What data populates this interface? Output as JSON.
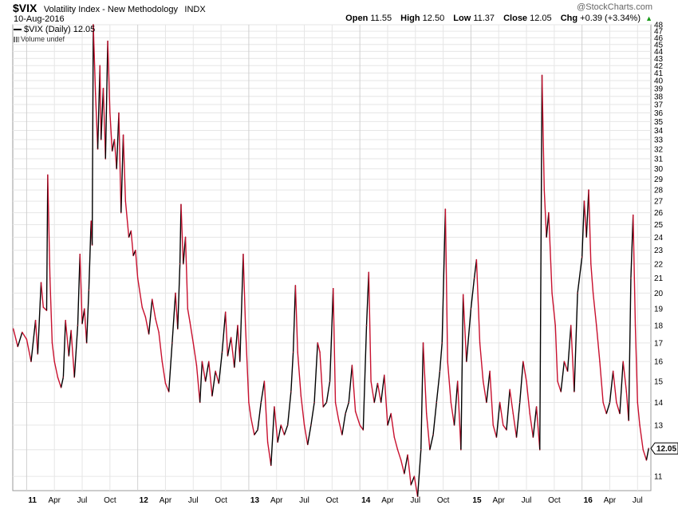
{
  "header": {
    "symbol": "$VIX",
    "name": "Volatility Index - New Methodology",
    "exchange": "INDX",
    "date": "10-Aug-2016",
    "watermark": "@StockCharts.com",
    "open_label": "Open",
    "open": "11.55",
    "high_label": "High",
    "high": "12.50",
    "low_label": "Low",
    "low": "11.37",
    "close_label": "Close",
    "close": "12.05",
    "chg_label": "Chg",
    "chg": "+0.39 (+3.34%)"
  },
  "legend": {
    "series": "$VIX (Daily) 12.05",
    "volume": "Volume undef"
  },
  "colors": {
    "up": "#000000",
    "down": "#c8102e",
    "grid": "#e6e6e6"
  },
  "chart_data": {
    "type": "line",
    "xlabel": "",
    "ylabel": "",
    "ylim": [
      10.5,
      48
    ],
    "y_scale": "log",
    "yticks": [
      11,
      12,
      13,
      14,
      15,
      16,
      17,
      18,
      19,
      20,
      21,
      22,
      23,
      24,
      25,
      26,
      27,
      28,
      29,
      30,
      31,
      32,
      33,
      34,
      35,
      36,
      37,
      38,
      39,
      40,
      41,
      42,
      43,
      44,
      45,
      46,
      47,
      48
    ],
    "xticks": [
      {
        "label": "11",
        "t": 2011.0,
        "year": true
      },
      {
        "label": "Apr",
        "t": 2011.25
      },
      {
        "label": "Jul",
        "t": 2011.5
      },
      {
        "label": "Oct",
        "t": 2011.75
      },
      {
        "label": "12",
        "t": 2012.0,
        "year": true
      },
      {
        "label": "Apr",
        "t": 2012.25
      },
      {
        "label": "Jul",
        "t": 2012.5
      },
      {
        "label": "Oct",
        "t": 2012.75
      },
      {
        "label": "13",
        "t": 2013.0,
        "year": true
      },
      {
        "label": "Apr",
        "t": 2013.25
      },
      {
        "label": "Jul",
        "t": 2013.5
      },
      {
        "label": "Oct",
        "t": 2013.75
      },
      {
        "label": "14",
        "t": 2014.0,
        "year": true
      },
      {
        "label": "Apr",
        "t": 2014.25
      },
      {
        "label": "Jul",
        "t": 2014.5
      },
      {
        "label": "Oct",
        "t": 2014.75
      },
      {
        "label": "15",
        "t": 2015.0,
        "year": true
      },
      {
        "label": "Apr",
        "t": 2015.25
      },
      {
        "label": "Jul",
        "t": 2015.5
      },
      {
        "label": "Oct",
        "t": 2015.75
      },
      {
        "label": "16",
        "t": 2016.0,
        "year": true
      },
      {
        "label": "Apr",
        "t": 2016.25
      },
      {
        "label": "Jul",
        "t": 2016.5
      }
    ],
    "last_value_label": "12.05",
    "series": [
      {
        "name": "$VIX (Daily)",
        "points": [
          [
            2010.88,
            17.8
          ],
          [
            2010.92,
            16.8
          ],
          [
            2010.96,
            17.6
          ],
          [
            2011.0,
            17.2
          ],
          [
            2011.04,
            16.0
          ],
          [
            2011.08,
            18.3
          ],
          [
            2011.1,
            16.4
          ],
          [
            2011.13,
            20.7
          ],
          [
            2011.15,
            19.1
          ],
          [
            2011.18,
            18.9
          ],
          [
            2011.19,
            29.4
          ],
          [
            2011.21,
            21.0
          ],
          [
            2011.23,
            17.0
          ],
          [
            2011.25,
            16.0
          ],
          [
            2011.28,
            15.2
          ],
          [
            2011.31,
            14.7
          ],
          [
            2011.33,
            15.2
          ],
          [
            2011.35,
            18.3
          ],
          [
            2011.38,
            16.3
          ],
          [
            2011.4,
            17.7
          ],
          [
            2011.43,
            15.2
          ],
          [
            2011.46,
            18.0
          ],
          [
            2011.48,
            22.7
          ],
          [
            2011.5,
            18.1
          ],
          [
            2011.52,
            19.0
          ],
          [
            2011.54,
            17.0
          ],
          [
            2011.56,
            20.2
          ],
          [
            2011.58,
            25.3
          ],
          [
            2011.59,
            23.4
          ],
          [
            2011.6,
            48.0
          ],
          [
            2011.62,
            38.3
          ],
          [
            2011.64,
            32.0
          ],
          [
            2011.66,
            42.0
          ],
          [
            2011.67,
            33.0
          ],
          [
            2011.69,
            39.0
          ],
          [
            2011.71,
            31.0
          ],
          [
            2011.73,
            45.5
          ],
          [
            2011.75,
            36.0
          ],
          [
            2011.77,
            31.8
          ],
          [
            2011.79,
            33.0
          ],
          [
            2011.81,
            30.0
          ],
          [
            2011.83,
            36.0
          ],
          [
            2011.85,
            26.0
          ],
          [
            2011.87,
            33.5
          ],
          [
            2011.89,
            27.0
          ],
          [
            2011.92,
            24.0
          ],
          [
            2011.94,
            24.5
          ],
          [
            2011.96,
            22.6
          ],
          [
            2011.98,
            23.0
          ],
          [
            2012.0,
            21.0
          ],
          [
            2012.04,
            19.1
          ],
          [
            2012.07,
            18.5
          ],
          [
            2012.1,
            17.5
          ],
          [
            2012.13,
            19.6
          ],
          [
            2012.16,
            18.4
          ],
          [
            2012.19,
            17.6
          ],
          [
            2012.22,
            16.0
          ],
          [
            2012.25,
            14.9
          ],
          [
            2012.28,
            14.5
          ],
          [
            2012.31,
            17.0
          ],
          [
            2012.34,
            20.0
          ],
          [
            2012.36,
            17.8
          ],
          [
            2012.38,
            22.0
          ],
          [
            2012.39,
            26.7
          ],
          [
            2012.41,
            22.0
          ],
          [
            2012.43,
            24.0
          ],
          [
            2012.45,
            19.0
          ],
          [
            2012.47,
            18.2
          ],
          [
            2012.5,
            17.0
          ],
          [
            2012.53,
            15.8
          ],
          [
            2012.56,
            14.0
          ],
          [
            2012.58,
            16.0
          ],
          [
            2012.61,
            15.0
          ],
          [
            2012.64,
            16.0
          ],
          [
            2012.67,
            14.3
          ],
          [
            2012.7,
            15.5
          ],
          [
            2012.73,
            14.9
          ],
          [
            2012.76,
            16.5
          ],
          [
            2012.79,
            18.8
          ],
          [
            2012.81,
            16.3
          ],
          [
            2012.84,
            17.3
          ],
          [
            2012.87,
            15.7
          ],
          [
            2012.9,
            18.0
          ],
          [
            2012.92,
            16.0
          ],
          [
            2012.95,
            22.7
          ],
          [
            2012.97,
            18.0
          ],
          [
            2013.0,
            14.0
          ],
          [
            2013.02,
            13.3
          ],
          [
            2013.05,
            12.6
          ],
          [
            2013.08,
            12.8
          ],
          [
            2013.11,
            14.0
          ],
          [
            2013.14,
            15.0
          ],
          [
            2013.17,
            12.3
          ],
          [
            2013.2,
            11.4
          ],
          [
            2013.23,
            13.8
          ],
          [
            2013.26,
            12.3
          ],
          [
            2013.29,
            13.0
          ],
          [
            2013.32,
            12.6
          ],
          [
            2013.35,
            13.0
          ],
          [
            2013.38,
            14.5
          ],
          [
            2013.4,
            16.5
          ],
          [
            2013.42,
            20.5
          ],
          [
            2013.44,
            16.5
          ],
          [
            2013.47,
            14.3
          ],
          [
            2013.5,
            13.0
          ],
          [
            2013.53,
            12.2
          ],
          [
            2013.56,
            13.0
          ],
          [
            2013.59,
            14.0
          ],
          [
            2013.62,
            17.0
          ],
          [
            2013.64,
            16.5
          ],
          [
            2013.67,
            13.8
          ],
          [
            2013.7,
            14.0
          ],
          [
            2013.73,
            15.0
          ],
          [
            2013.76,
            20.3
          ],
          [
            2013.78,
            14.0
          ],
          [
            2013.81,
            13.2
          ],
          [
            2013.84,
            12.6
          ],
          [
            2013.87,
            13.5
          ],
          [
            2013.9,
            14.0
          ],
          [
            2013.93,
            15.8
          ],
          [
            2013.96,
            13.6
          ],
          [
            2014.0,
            13.0
          ],
          [
            2014.03,
            12.8
          ],
          [
            2014.06,
            18.0
          ],
          [
            2014.08,
            21.4
          ],
          [
            2014.1,
            15.0
          ],
          [
            2014.13,
            14.0
          ],
          [
            2014.16,
            14.9
          ],
          [
            2014.19,
            14.0
          ],
          [
            2014.22,
            15.3
          ],
          [
            2014.25,
            13.0
          ],
          [
            2014.28,
            13.5
          ],
          [
            2014.31,
            12.5
          ],
          [
            2014.34,
            12.0
          ],
          [
            2014.37,
            11.6
          ],
          [
            2014.4,
            11.1
          ],
          [
            2014.43,
            11.8
          ],
          [
            2014.46,
            10.7
          ],
          [
            2014.49,
            11.0
          ],
          [
            2014.52,
            10.3
          ],
          [
            2014.55,
            12.0
          ],
          [
            2014.57,
            17.0
          ],
          [
            2014.6,
            13.5
          ],
          [
            2014.63,
            12.0
          ],
          [
            2014.66,
            12.6
          ],
          [
            2014.69,
            14.0
          ],
          [
            2014.72,
            15.5
          ],
          [
            2014.74,
            17.0
          ],
          [
            2014.77,
            26.3
          ],
          [
            2014.79,
            16.0
          ],
          [
            2014.82,
            14.0
          ],
          [
            2014.85,
            13.0
          ],
          [
            2014.88,
            15.0
          ],
          [
            2014.91,
            12.0
          ],
          [
            2014.93,
            19.9
          ],
          [
            2014.96,
            16.0
          ],
          [
            2015.0,
            19.0
          ],
          [
            2015.03,
            21.0
          ],
          [
            2015.05,
            22.3
          ],
          [
            2015.08,
            17.0
          ],
          [
            2015.11,
            15.0
          ],
          [
            2015.14,
            14.0
          ],
          [
            2015.17,
            15.5
          ],
          [
            2015.2,
            13.0
          ],
          [
            2015.23,
            12.5
          ],
          [
            2015.26,
            14.0
          ],
          [
            2015.29,
            13.0
          ],
          [
            2015.32,
            12.8
          ],
          [
            2015.35,
            14.6
          ],
          [
            2015.38,
            13.5
          ],
          [
            2015.41,
            12.5
          ],
          [
            2015.44,
            14.0
          ],
          [
            2015.47,
            16.0
          ],
          [
            2015.5,
            15.0
          ],
          [
            2015.53,
            13.5
          ],
          [
            2015.56,
            12.5
          ],
          [
            2015.59,
            13.8
          ],
          [
            2015.62,
            12.0
          ],
          [
            2015.64,
            40.7
          ],
          [
            2015.66,
            28.0
          ],
          [
            2015.68,
            24.0
          ],
          [
            2015.7,
            26.0
          ],
          [
            2015.73,
            20.0
          ],
          [
            2015.76,
            18.0
          ],
          [
            2015.78,
            15.0
          ],
          [
            2015.81,
            14.5
          ],
          [
            2015.84,
            16.0
          ],
          [
            2015.87,
            15.5
          ],
          [
            2015.9,
            18.0
          ],
          [
            2015.93,
            14.5
          ],
          [
            2015.96,
            20.0
          ],
          [
            2016.0,
            22.5
          ],
          [
            2016.02,
            27.0
          ],
          [
            2016.04,
            24.0
          ],
          [
            2016.06,
            28.0
          ],
          [
            2016.08,
            22.0
          ],
          [
            2016.1,
            20.0
          ],
          [
            2016.13,
            18.0
          ],
          [
            2016.16,
            16.0
          ],
          [
            2016.19,
            14.0
          ],
          [
            2016.22,
            13.5
          ],
          [
            2016.25,
            14.0
          ],
          [
            2016.28,
            15.5
          ],
          [
            2016.31,
            14.0
          ],
          [
            2016.34,
            13.5
          ],
          [
            2016.37,
            16.0
          ],
          [
            2016.4,
            14.5
          ],
          [
            2016.42,
            13.2
          ],
          [
            2016.44,
            21.0
          ],
          [
            2016.46,
            25.8
          ],
          [
            2016.48,
            18.0
          ],
          [
            2016.5,
            14.0
          ],
          [
            2016.52,
            13.0
          ],
          [
            2016.55,
            12.0
          ],
          [
            2016.58,
            11.6
          ],
          [
            2016.6,
            12.05
          ]
        ]
      }
    ]
  }
}
